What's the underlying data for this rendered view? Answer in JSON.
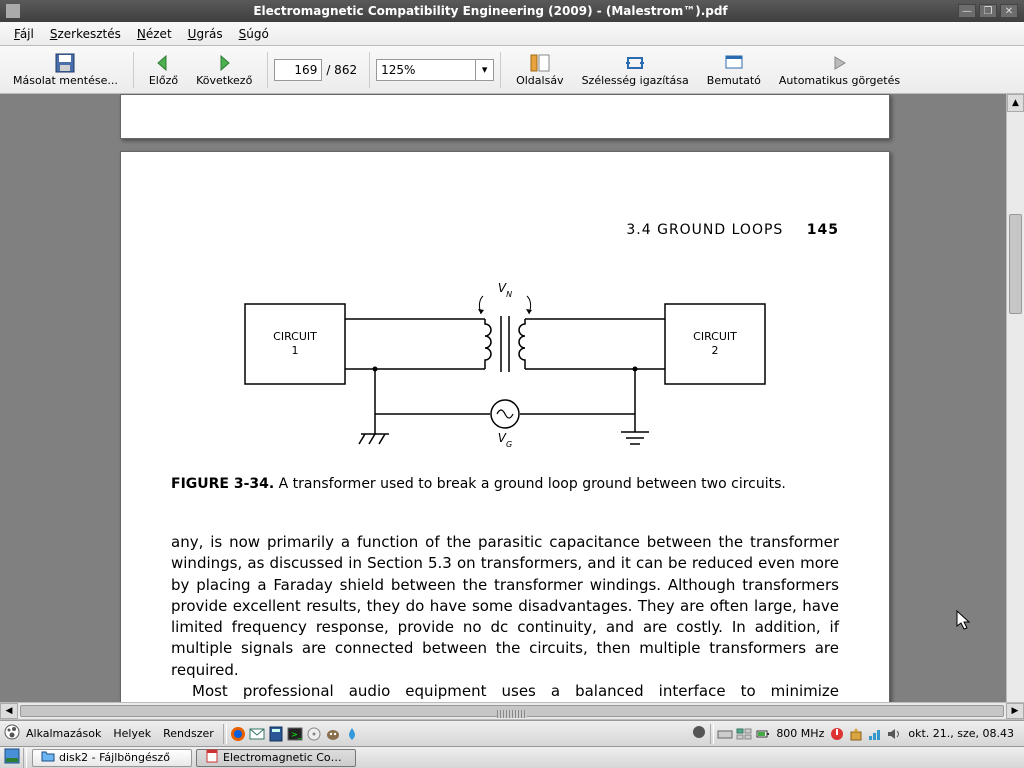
{
  "window": {
    "title": "Electromagnetic Compatibility Engineering (2009) - (Malestrom™).pdf"
  },
  "menus": {
    "file": "Fájl",
    "edit": "Szerkesztés",
    "view": "Nézet",
    "go": "Ugrás",
    "help": "Súgó"
  },
  "toolbar": {
    "save_copy": "Másolat mentése...",
    "previous": "Előző",
    "next": "Következő",
    "page_current": "169",
    "page_total": "/ 862",
    "zoom": "125%",
    "sidebar": "Oldalsáv",
    "fit_width": "Szélesség igazítása",
    "presentation": "Bemutató",
    "auto_scroll": "Automatikus görgetés"
  },
  "document": {
    "running_head_section": "3.4   GROUND LOOPS",
    "running_head_page": "145",
    "figure_caption_label": "FIGURE 3-34.",
    "figure_caption_text": "  A transformer used to break a ground loop ground between two circuits.",
    "figure": {
      "circuit1_label": "CIRCUIT",
      "circuit1_num": "1",
      "circuit2_label": "CIRCUIT",
      "circuit2_num": "2",
      "vn_label": "V",
      "vn_sub": "N",
      "vg_label": "V",
      "vg_sub": "G"
    },
    "para1": "any, is now primarily a function of the parasitic capacitance between the transformer windings, as discussed in Section 5.3 on transformers, and it can be reduced even more by placing a Faraday shield between the transformer windings. Although transformers provide excellent results, they do have some disadvantages. They are often large, have limited frequency response, provide no dc continuity, and are costly. In addition, if multiple signals are connected between the circuits, then multiple transformers are required.",
    "para2": "Most professional audio equipment uses a balanced interface to minimize susceptibility to interference and ground loops. Most consumer audio equipment, however, uses a less expensive unbalanced interface. An unbalanced"
  },
  "panel": {
    "apps": "Alkalmazások",
    "places": "Helyek",
    "system": "Rendszer",
    "cpu": "800 MHz",
    "clock": "okt. 21., sze, 08.43"
  },
  "windowlist": {
    "w1": "disk2 - Fájlböngésző",
    "w2": "Electromagnetic Comp..."
  },
  "colors": {
    "page_bg": "#ffffff",
    "desktop_bg": "#808080",
    "titlebar_bg": "#4a4a4a"
  }
}
